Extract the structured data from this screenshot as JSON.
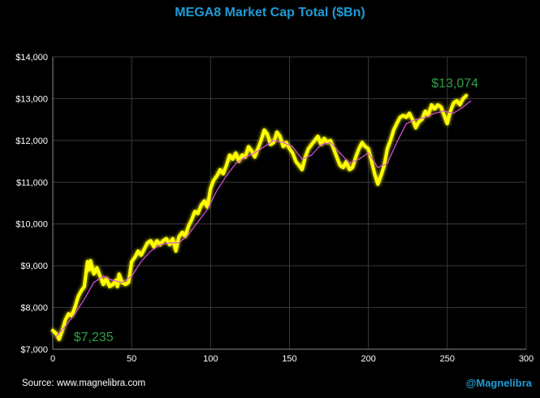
{
  "chart_data": {
    "type": "line",
    "title": "MEGA8 Market Cap Total ($Bn)",
    "xlabel": "",
    "ylabel": "",
    "xlim": [
      0,
      300
    ],
    "ylim": [
      7000,
      14000
    ],
    "x_ticks": [
      0,
      50,
      100,
      150,
      200,
      250,
      300
    ],
    "y_ticks": [
      7000,
      8000,
      9000,
      10000,
      11000,
      12000,
      13000,
      14000
    ],
    "y_tick_labels": [
      "$7,000",
      "$8,000",
      "$9,000",
      "$10,000",
      "$11,000",
      "$12,000",
      "$13,000",
      "$14,000"
    ],
    "grid": true,
    "series": [
      {
        "role": "price",
        "color": "#ffff00",
        "points": [
          [
            0,
            7450
          ],
          [
            2,
            7380
          ],
          [
            4,
            7235
          ],
          [
            6,
            7450
          ],
          [
            8,
            7700
          ],
          [
            10,
            7850
          ],
          [
            12,
            7800
          ],
          [
            14,
            8000
          ],
          [
            16,
            8250
          ],
          [
            18,
            8400
          ],
          [
            20,
            8500
          ],
          [
            21,
            8800
          ],
          [
            22,
            9100
          ],
          [
            23,
            8900
          ],
          [
            24,
            9120
          ],
          [
            25,
            8950
          ],
          [
            26,
            8800
          ],
          [
            28,
            8950
          ],
          [
            30,
            8750
          ],
          [
            32,
            8550
          ],
          [
            34,
            8700
          ],
          [
            36,
            8500
          ],
          [
            38,
            8550
          ],
          [
            40,
            8650
          ],
          [
            41,
            8500
          ],
          [
            42,
            8800
          ],
          [
            44,
            8600
          ],
          [
            46,
            8550
          ],
          [
            48,
            8600
          ],
          [
            50,
            9100
          ],
          [
            52,
            9200
          ],
          [
            54,
            9350
          ],
          [
            56,
            9250
          ],
          [
            58,
            9400
          ],
          [
            60,
            9550
          ],
          [
            62,
            9600
          ],
          [
            64,
            9450
          ],
          [
            66,
            9600
          ],
          [
            68,
            9500
          ],
          [
            70,
            9600
          ],
          [
            72,
            9650
          ],
          [
            74,
            9500
          ],
          [
            76,
            9650
          ],
          [
            78,
            9350
          ],
          [
            80,
            9700
          ],
          [
            82,
            9800
          ],
          [
            84,
            9700
          ],
          [
            86,
            9950
          ],
          [
            88,
            10100
          ],
          [
            90,
            10300
          ],
          [
            92,
            10250
          ],
          [
            94,
            10450
          ],
          [
            96,
            10550
          ],
          [
            98,
            10400
          ],
          [
            100,
            10850
          ],
          [
            102,
            11050
          ],
          [
            104,
            11150
          ],
          [
            106,
            11300
          ],
          [
            108,
            11200
          ],
          [
            110,
            11400
          ],
          [
            112,
            11650
          ],
          [
            114,
            11550
          ],
          [
            116,
            11700
          ],
          [
            118,
            11500
          ],
          [
            120,
            11650
          ],
          [
            122,
            11600
          ],
          [
            124,
            11850
          ],
          [
            126,
            11750
          ],
          [
            128,
            11600
          ],
          [
            130,
            11800
          ],
          [
            132,
            12000
          ],
          [
            134,
            12250
          ],
          [
            136,
            12150
          ],
          [
            138,
            11900
          ],
          [
            140,
            11950
          ],
          [
            142,
            12200
          ],
          [
            144,
            12100
          ],
          [
            146,
            11850
          ],
          [
            148,
            11950
          ],
          [
            150,
            11800
          ],
          [
            152,
            11700
          ],
          [
            154,
            11500
          ],
          [
            156,
            11400
          ],
          [
            158,
            11300
          ],
          [
            160,
            11600
          ],
          [
            162,
            11800
          ],
          [
            164,
            11900
          ],
          [
            166,
            12000
          ],
          [
            168,
            12100
          ],
          [
            170,
            11900
          ],
          [
            172,
            12050
          ],
          [
            174,
            11950
          ],
          [
            176,
            12000
          ],
          [
            178,
            11800
          ],
          [
            180,
            11600
          ],
          [
            182,
            11400
          ],
          [
            184,
            11350
          ],
          [
            186,
            11500
          ],
          [
            188,
            11300
          ],
          [
            190,
            11350
          ],
          [
            192,
            11600
          ],
          [
            194,
            11800
          ],
          [
            196,
            11950
          ],
          [
            198,
            11850
          ],
          [
            200,
            11800
          ],
          [
            202,
            11500
          ],
          [
            204,
            11200
          ],
          [
            206,
            10950
          ],
          [
            208,
            11150
          ],
          [
            210,
            11400
          ],
          [
            212,
            11800
          ],
          [
            214,
            12000
          ],
          [
            216,
            12250
          ],
          [
            218,
            12400
          ],
          [
            220,
            12550
          ],
          [
            222,
            12600
          ],
          [
            224,
            12550
          ],
          [
            226,
            12650
          ],
          [
            228,
            12500
          ],
          [
            230,
            12300
          ],
          [
            232,
            12450
          ],
          [
            234,
            12500
          ],
          [
            236,
            12700
          ],
          [
            238,
            12600
          ],
          [
            240,
            12850
          ],
          [
            242,
            12750
          ],
          [
            244,
            12850
          ],
          [
            246,
            12800
          ],
          [
            248,
            12600
          ],
          [
            250,
            12400
          ],
          [
            252,
            12700
          ],
          [
            254,
            12900
          ],
          [
            256,
            12950
          ],
          [
            258,
            12850
          ],
          [
            260,
            13000
          ],
          [
            262,
            13074
          ]
        ]
      },
      {
        "role": "moving-average",
        "color": "#e050e0",
        "points": [
          [
            2,
            7300
          ],
          [
            8,
            7550
          ],
          [
            14,
            7850
          ],
          [
            20,
            8200
          ],
          [
            26,
            8600
          ],
          [
            32,
            8750
          ],
          [
            38,
            8650
          ],
          [
            44,
            8600
          ],
          [
            50,
            8750
          ],
          [
            56,
            9100
          ],
          [
            62,
            9350
          ],
          [
            68,
            9500
          ],
          [
            74,
            9550
          ],
          [
            80,
            9550
          ],
          [
            86,
            9750
          ],
          [
            92,
            10050
          ],
          [
            98,
            10350
          ],
          [
            104,
            10800
          ],
          [
            110,
            11150
          ],
          [
            116,
            11450
          ],
          [
            122,
            11600
          ],
          [
            128,
            11700
          ],
          [
            134,
            11850
          ],
          [
            140,
            12000
          ],
          [
            146,
            11950
          ],
          [
            152,
            11850
          ],
          [
            158,
            11550
          ],
          [
            164,
            11650
          ],
          [
            170,
            11900
          ],
          [
            176,
            11950
          ],
          [
            182,
            11700
          ],
          [
            188,
            11450
          ],
          [
            194,
            11550
          ],
          [
            200,
            11700
          ],
          [
            206,
            11350
          ],
          [
            212,
            11450
          ],
          [
            218,
            11950
          ],
          [
            224,
            12400
          ],
          [
            230,
            12500
          ],
          [
            236,
            12550
          ],
          [
            242,
            12650
          ],
          [
            248,
            12700
          ],
          [
            254,
            12650
          ],
          [
            260,
            12800
          ],
          [
            265,
            12950
          ]
        ]
      }
    ],
    "annotations": [
      {
        "text": "$7,235",
        "x": 4,
        "y": 7235,
        "color": "#2ea043"
      },
      {
        "text": "$13,074",
        "x": 262,
        "y": 13074,
        "color": "#2ea043"
      }
    ]
  },
  "footer": {
    "source": "Source: www.magnelibra.com",
    "handle": "@Magnelibra"
  }
}
